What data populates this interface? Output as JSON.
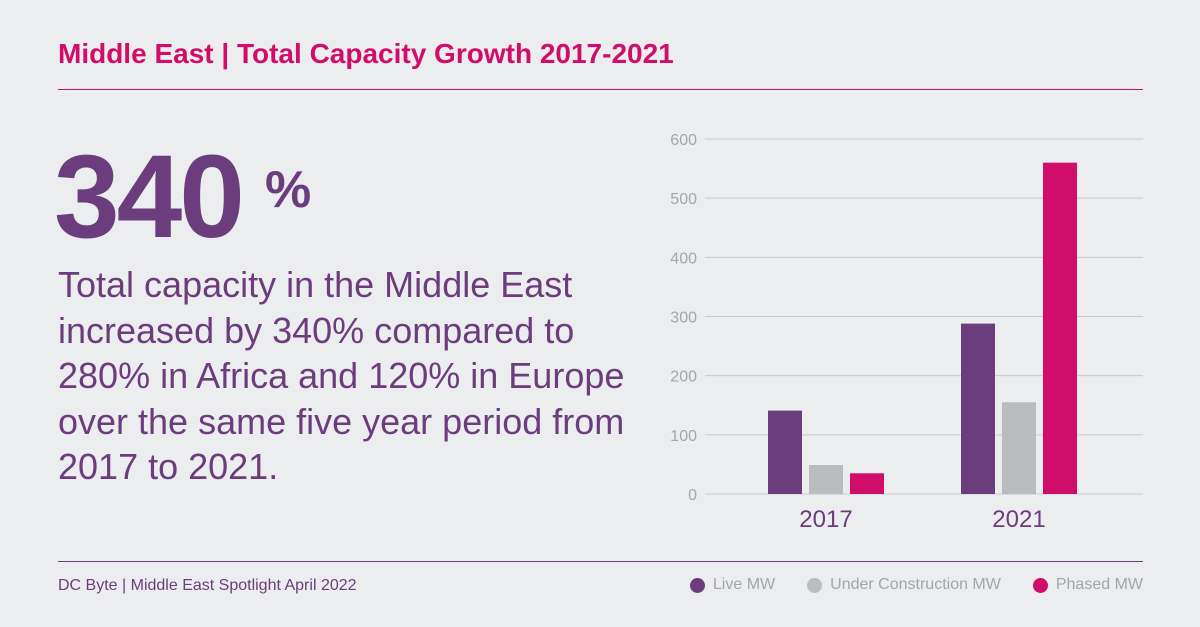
{
  "header": {
    "title": "Middle East | Total Capacity Growth 2017-2021"
  },
  "stat": {
    "value": "340",
    "unit": "%",
    "description": "Total capacity in the Middle East increased by 340% compared to 280% in Africa and 120% in Europe over the same five year period from 2017 to 2021."
  },
  "footer": {
    "source": "DC Byte | Middle East Spotlight April 2022"
  },
  "chart_data": {
    "type": "bar",
    "title": "",
    "xlabel": "",
    "ylabel": "",
    "categories": [
      "2017",
      "2021"
    ],
    "ylim": [
      0,
      600
    ],
    "yticks": [
      0,
      100,
      200,
      300,
      400,
      500,
      600
    ],
    "grid": true,
    "legend_position": "bottom-right",
    "series": [
      {
        "name": "Live MW",
        "color": "#6b3d7d",
        "values": [
          141,
          288
        ]
      },
      {
        "name": "Under Construction MW",
        "color": "#bbbcbe",
        "values": [
          49,
          155
        ]
      },
      {
        "name": "Phased MW",
        "color": "#d10d6a",
        "values": [
          35,
          560
        ]
      }
    ]
  }
}
